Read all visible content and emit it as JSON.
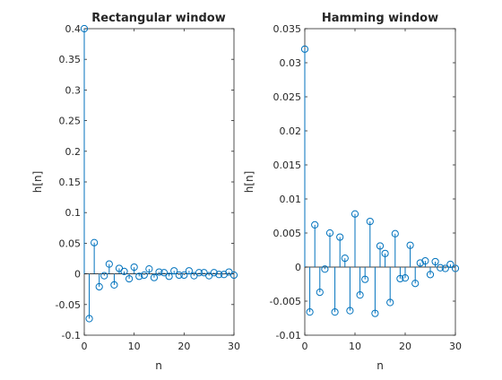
{
  "chart_data": [
    {
      "type": "stem",
      "title": "Rectangular window",
      "xlabel": "n",
      "ylabel": "h[n]",
      "xlim": [
        0,
        30
      ],
      "ylim": [
        -0.1,
        0.4
      ],
      "xticks": [
        "0",
        "10",
        "20",
        "30"
      ],
      "yticks": [
        "0.4",
        "0.35",
        "0.3",
        "0.25",
        "0.2",
        "0.15",
        "0.1",
        "0.05",
        "0",
        "-0.05",
        "-0.1"
      ],
      "x": [
        0,
        1,
        2,
        3,
        4,
        5,
        6,
        7,
        8,
        9,
        10,
        11,
        12,
        13,
        14,
        15,
        16,
        17,
        18,
        19,
        20,
        21,
        22,
        23,
        24,
        25,
        26,
        27,
        28,
        29,
        30
      ],
      "values": [
        0.4,
        -0.073,
        0.051,
        -0.021,
        -0.003,
        0.016,
        -0.018,
        0.009,
        0.004,
        -0.008,
        0.011,
        -0.004,
        -0.002,
        0.008,
        -0.006,
        0.003,
        0.002,
        -0.004,
        0.005,
        -0.002,
        -0.002,
        0.005,
        -0.003,
        0.002,
        0.002,
        -0.003,
        0.002,
        -0.001,
        -0.001,
        0.003,
        -0.002
      ]
    },
    {
      "type": "stem",
      "title": "Hamming window",
      "xlabel": "n",
      "ylabel": "h[n]",
      "xlim": [
        0,
        30
      ],
      "ylim": [
        -0.01,
        0.035
      ],
      "xticks": [
        "0",
        "10",
        "20",
        "30"
      ],
      "yticks": [
        "0.035",
        "0.03",
        "0.025",
        "0.02",
        "0.015",
        "0.01",
        "0.005",
        "0",
        "-0.005",
        "-0.01"
      ],
      "x": [
        0,
        1,
        2,
        3,
        4,
        5,
        6,
        7,
        8,
        9,
        10,
        11,
        12,
        13,
        14,
        15,
        16,
        17,
        18,
        19,
        20,
        21,
        22,
        23,
        24,
        25,
        26,
        27,
        28,
        29,
        30
      ],
      "values": [
        0.032,
        -0.0066,
        0.0062,
        -0.0037,
        -0.0003,
        0.005,
        -0.0066,
        0.0044,
        0.0013,
        -0.0064,
        0.0078,
        -0.0041,
        -0.0018,
        0.0067,
        -0.0068,
        0.0031,
        0.002,
        -0.0052,
        0.0049,
        -0.0017,
        -0.0016,
        0.0032,
        -0.0024,
        0.0006,
        0.0009,
        -0.0011,
        0.0008,
        -0.0001,
        -0.0002,
        0.0004,
        -0.0002
      ]
    }
  ],
  "colors": {
    "stem": "#0072BD",
    "axes": "#262626"
  }
}
